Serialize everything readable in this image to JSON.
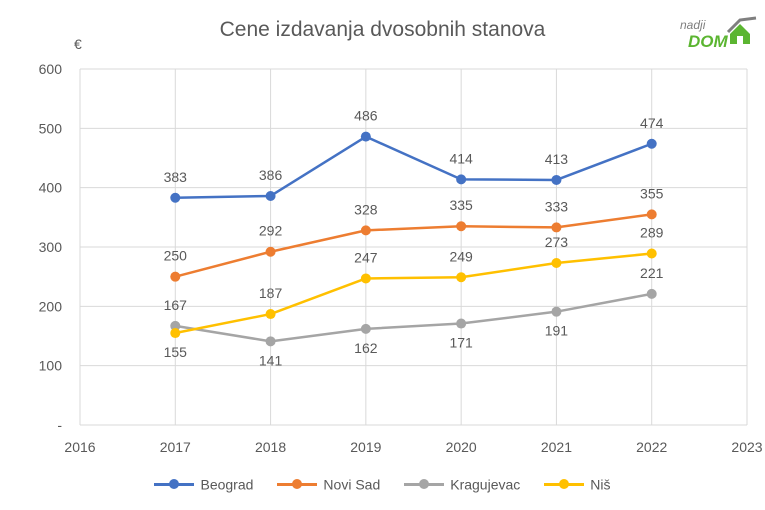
{
  "chart_data": {
    "type": "line",
    "title": "Cene izdavanja dvosobnih stanova",
    "ylabel": "€",
    "xlabel": "",
    "x_ticks": [
      "2016",
      "2017",
      "2018",
      "2019",
      "2020",
      "2021",
      "2022",
      "2023"
    ],
    "xlim": [
      2016,
      2023
    ],
    "y_ticks": [
      "-",
      "100",
      "200",
      "300",
      "400",
      "500",
      "600"
    ],
    "ylim": [
      0,
      600
    ],
    "grid": true,
    "legend_position": "bottom",
    "categories": [
      2017,
      2018,
      2019,
      2020,
      2021,
      2022
    ],
    "series": [
      {
        "name": "Beograd",
        "color": "#4472c4",
        "values": [
          383,
          386,
          486,
          414,
          413,
          474
        ],
        "labels": [
          "383",
          "386",
          "486",
          "414",
          "413",
          "474"
        ]
      },
      {
        "name": "Novi Sad",
        "color": "#ed7d31",
        "values": [
          250,
          292,
          328,
          335,
          333,
          355
        ],
        "labels": [
          "250",
          "292",
          "328",
          "335",
          "333",
          "355"
        ]
      },
      {
        "name": "Kragujevac",
        "color": "#a5a5a5",
        "values": [
          167,
          141,
          162,
          171,
          191,
          221
        ],
        "labels": [
          "167",
          "141",
          "162",
          "171",
          "191",
          "221"
        ]
      },
      {
        "name": "Niš",
        "color": "#ffc000",
        "values": [
          155,
          187,
          247,
          249,
          273,
          289
        ],
        "labels": [
          "155",
          "187",
          "247",
          "249",
          "273",
          "289"
        ]
      }
    ]
  },
  "logo": {
    "small": "nadji",
    "big": "DOM",
    "color": "#5bb531"
  }
}
